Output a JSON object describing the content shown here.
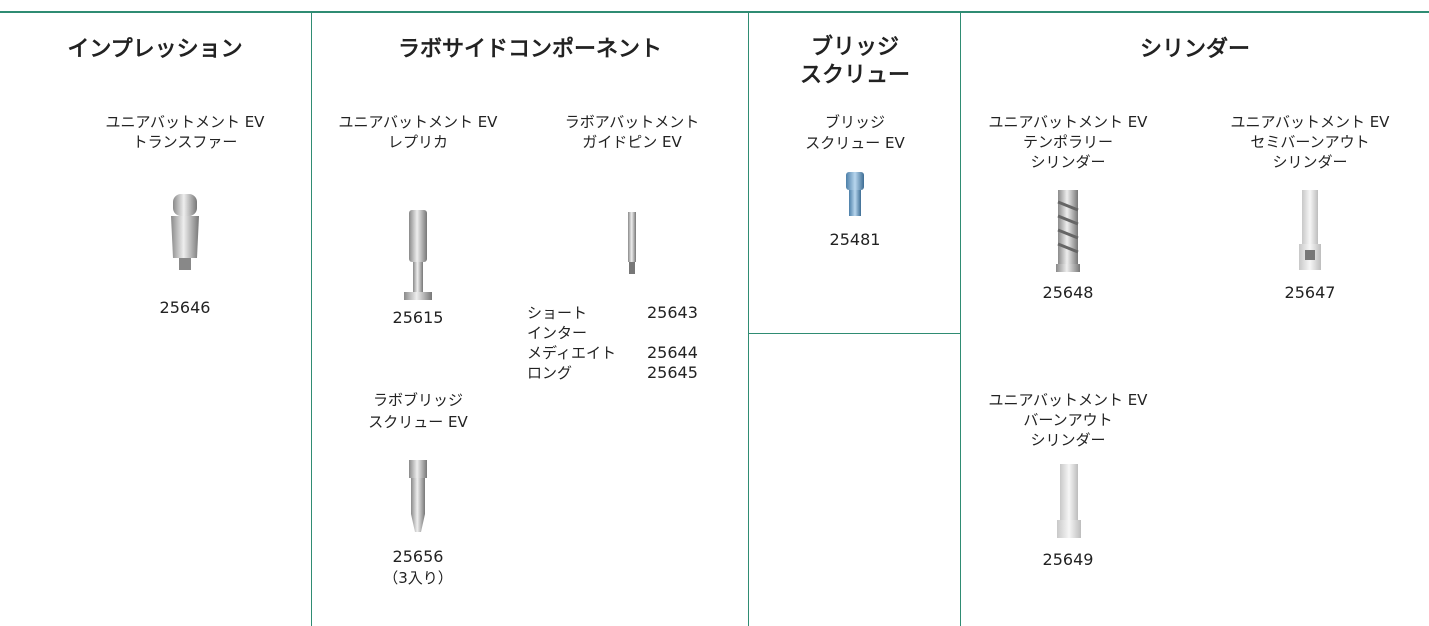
{
  "columns": [
    {
      "header": [
        "インプレッション"
      ],
      "items": [
        {
          "name": [
            "ユニアバットメント EV",
            "トランスファー"
          ],
          "code": "25646"
        }
      ]
    },
    {
      "header": [
        "ラボサイドコンポーネント"
      ],
      "items": [
        {
          "name": [
            "ユニアバットメント EV",
            "レプリカ"
          ],
          "code": "25615"
        },
        {
          "name": [
            "ラボアバットメント",
            "ガイドピン EV"
          ],
          "variants": [
            {
              "label": [
                "ショート"
              ],
              "code": "25643"
            },
            {
              "label": [
                "インター",
                "メディエイト"
              ],
              "code": "25644"
            },
            {
              "label": [
                "ロング"
              ],
              "code": "25645"
            }
          ]
        },
        {
          "name": [
            "ラボブリッジ",
            "スクリュー EV"
          ],
          "code": "25656",
          "note": "（3入り）"
        }
      ]
    },
    {
      "header": [
        "ブリッジ",
        "スクリュー"
      ],
      "items": [
        {
          "name": [
            "ブリッジ",
            "スクリュー EV"
          ],
          "code": "25481"
        }
      ]
    },
    {
      "header": [
        "シリンダー"
      ],
      "items": [
        {
          "name": [
            "ユニアバットメント EV",
            "テンポラリー",
            "シリンダー"
          ],
          "code": "25648"
        },
        {
          "name": [
            "ユニアバットメント EV",
            "セミバーンアウト",
            "シリンダー"
          ],
          "code": "25647"
        },
        {
          "name": [
            "ユニアバットメント EV",
            "バーンアウト",
            "シリンダー"
          ],
          "code": "25649"
        }
      ]
    }
  ]
}
